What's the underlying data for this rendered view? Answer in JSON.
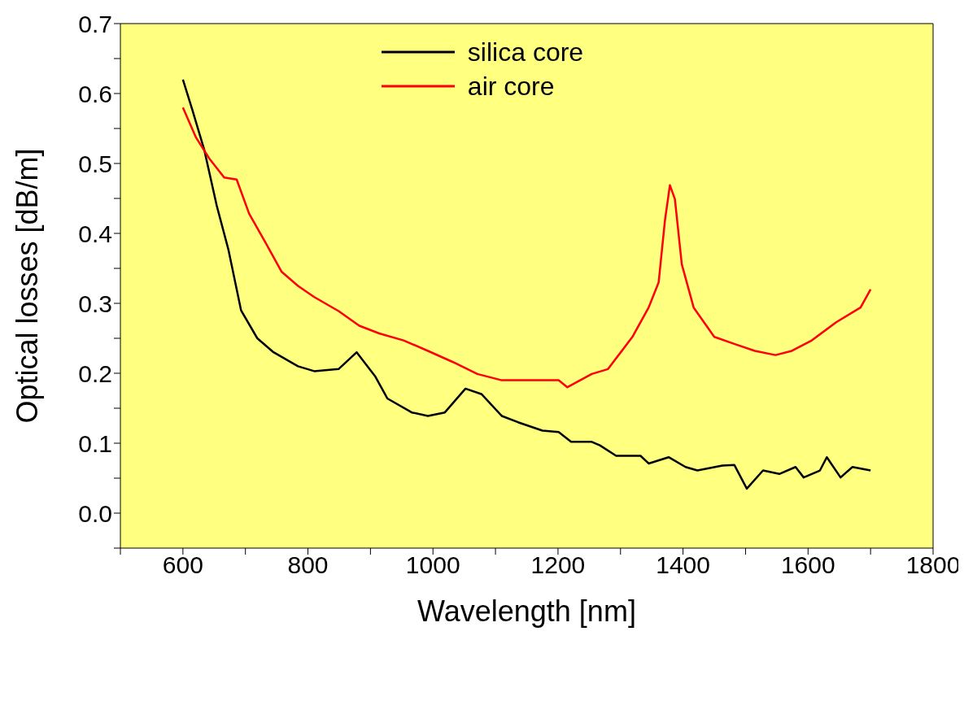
{
  "chart_data": {
    "type": "line",
    "xlabel": "Wavelength [nm]",
    "ylabel": "Optical losses [dB/m]",
    "xlim": [
      500,
      1800
    ],
    "ylim": [
      -0.05,
      0.7
    ],
    "xticks": [
      {
        "value": 500,
        "label": null
      },
      600,
      {
        "value": 700,
        "label": null
      },
      800,
      {
        "value": 900,
        "label": null
      },
      1000,
      {
        "value": 1100,
        "label": null
      },
      1200,
      {
        "value": 1300,
        "label": null
      },
      1400,
      {
        "value": 1500,
        "label": null
      },
      1600,
      {
        "value": 1700,
        "label": null
      },
      1800
    ],
    "yticks": [
      {
        "value": -0.05,
        "label": null
      },
      {
        "value": 0,
        "label": "0.0"
      },
      {
        "value": 0.05,
        "label": null
      },
      {
        "value": 0.1,
        "label": "0.1"
      },
      {
        "value": 0.15,
        "label": null
      },
      {
        "value": 0.2,
        "label": "0.2"
      },
      {
        "value": 0.25,
        "label": null
      },
      {
        "value": 0.3,
        "label": "0.3"
      },
      {
        "value": 0.35,
        "label": null
      },
      {
        "value": 0.4,
        "label": "0.4"
      },
      {
        "value": 0.45,
        "label": null
      },
      {
        "value": 0.5,
        "label": "0.5"
      },
      {
        "value": 0.55,
        "label": null
      },
      {
        "value": 0.6,
        "label": "0.6"
      },
      {
        "value": 0.65,
        "label": null
      },
      {
        "value": 0.7,
        "label": "0.7"
      }
    ],
    "grid": false,
    "legend": "top",
    "marker": "none",
    "line_style": "solid",
    "series": [
      {
        "name": "silica core",
        "color": "#000000",
        "x": [
          600,
          615,
          634,
          654,
          673,
          693,
          719,
          745,
          784,
          810,
          849,
          878,
          908,
          927,
          966,
          992,
          1019,
          1052,
          1078,
          1110,
          1136,
          1175,
          1201,
          1221,
          1254,
          1267,
          1293,
          1332,
          1345,
          1377,
          1404,
          1423,
          1463,
          1482,
          1502,
          1528,
          1554,
          1580,
          1593,
          1619,
          1630,
          1652,
          1671,
          1700
        ],
        "values": [
          0.62,
          0.577,
          0.52,
          0.44,
          0.376,
          0.29,
          0.25,
          0.23,
          0.21,
          0.203,
          0.206,
          0.23,
          0.195,
          0.164,
          0.144,
          0.139,
          0.144,
          0.178,
          0.17,
          0.139,
          0.13,
          0.118,
          0.116,
          0.102,
          0.102,
          0.097,
          0.082,
          0.082,
          0.071,
          0.08,
          0.066,
          0.061,
          0.068,
          0.069,
          0.035,
          0.061,
          0.056,
          0.066,
          0.051,
          0.061,
          0.08,
          0.051,
          0.066,
          0.061
        ]
      },
      {
        "name": "air core",
        "color": "#ff0000",
        "x": [
          600,
          621,
          643,
          666,
          686,
          706,
          732,
          758,
          784,
          810,
          849,
          882,
          914,
          953,
          992,
          1032,
          1071,
          1110,
          1163,
          1201,
          1215,
          1254,
          1280,
          1319,
          1345,
          1361,
          1371,
          1379,
          1387,
          1398,
          1417,
          1450,
          1482,
          1515,
          1548,
          1574,
          1606,
          1645,
          1684,
          1700
        ],
        "values": [
          0.58,
          0.537,
          0.506,
          0.48,
          0.477,
          0.428,
          0.387,
          0.345,
          0.325,
          0.309,
          0.289,
          0.268,
          0.257,
          0.247,
          0.232,
          0.216,
          0.199,
          0.19,
          0.19,
          0.19,
          0.18,
          0.199,
          0.206,
          0.252,
          0.294,
          0.33,
          0.418,
          0.469,
          0.449,
          0.356,
          0.294,
          0.252,
          0.242,
          0.232,
          0.226,
          0.232,
          0.247,
          0.273,
          0.294,
          0.32
        ]
      }
    ]
  }
}
